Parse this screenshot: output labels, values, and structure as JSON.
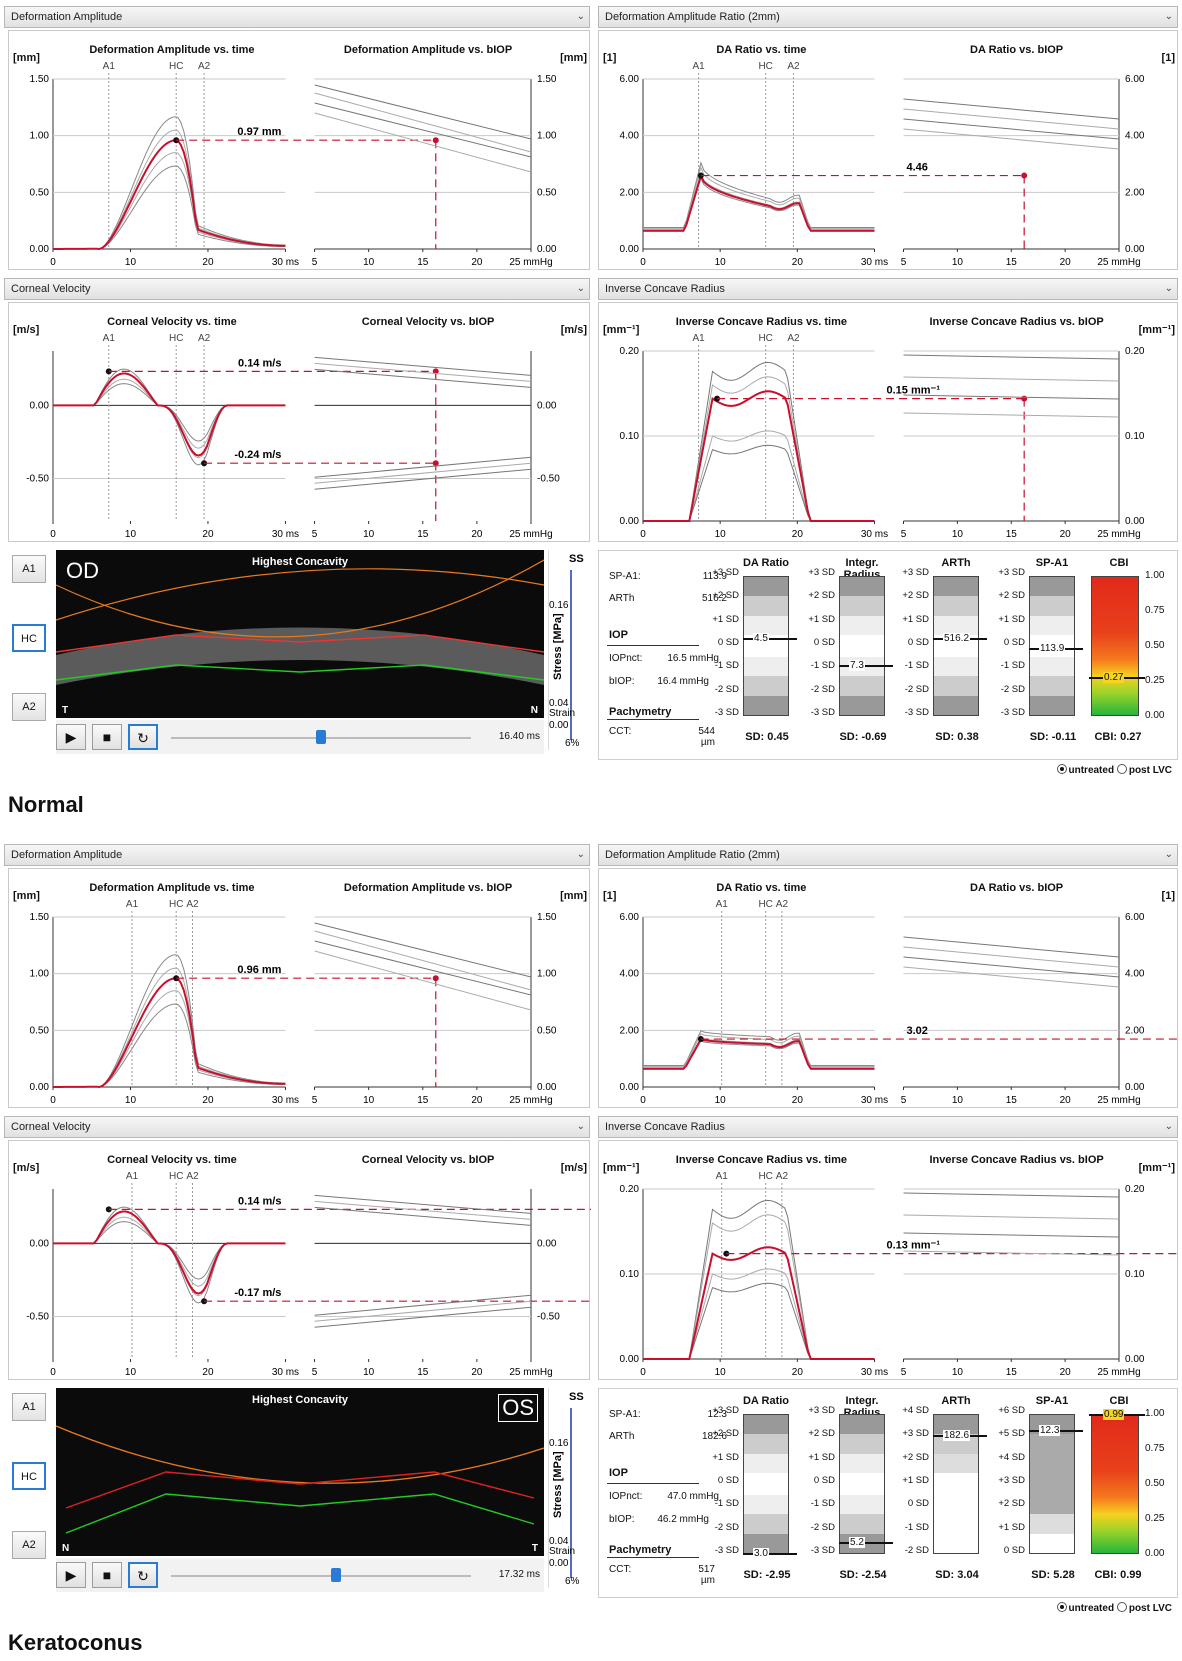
{
  "normal": {
    "caption": "Normal",
    "headers": {
      "da": "Deformation Amplitude",
      "ratio": "Deformation Amplitude Ratio (2mm)",
      "vel": "Corneal Velocity",
      "icr": "Inverse Concave Radius"
    },
    "da": {
      "t1": "Deformation Amplitude vs. time",
      "t2": "Deformation Amplitude vs. bIOP",
      "unit": "[mm]",
      "marks": [
        "A1",
        "HC",
        "A2"
      ],
      "yt": [
        "1.50",
        "1.00",
        "0.50",
        "0.00"
      ],
      "xt": [
        "0",
        "10",
        "20",
        "30 ms"
      ],
      "bx": [
        "5",
        "10",
        "15",
        "20",
        "25 mmHg"
      ],
      "val": "0.97 mm"
    },
    "ratio": {
      "t1": "DA Ratio vs. time",
      "t2": "DA Ratio vs. bIOP",
      "unit": "[1]",
      "marks": [
        "A1",
        "HC",
        "A2"
      ],
      "yt": [
        "6.00",
        "4.00",
        "2.00",
        "0.00"
      ],
      "xt": [
        "0",
        "10",
        "20",
        "30 ms"
      ],
      "bx": [
        "5",
        "10",
        "15",
        "20",
        "25 mmHg"
      ],
      "val": "4.46"
    },
    "vel": {
      "t1": "Corneal Velocity vs. time",
      "t2": "Corneal Velocity vs. bIOP",
      "unit": "[m/s]",
      "marks": [
        "A1",
        "HC",
        "A2"
      ],
      "yt": [
        "0.00",
        "-0.50"
      ],
      "xt": [
        "0",
        "10",
        "20",
        "30 ms"
      ],
      "bx": [
        "5",
        "10",
        "15",
        "20",
        "25 mmHg"
      ],
      "val1": "0.14 m/s",
      "val2": "-0.24 m/s"
    },
    "icr": {
      "t1": "Inverse Concave Radius vs. time",
      "t2": "Inverse Concave Radius vs. bIOP",
      "unit": "[mm⁻¹]",
      "marks": [
        "A1",
        "HC",
        "A2"
      ],
      "yt": [
        "0.20",
        "0.10",
        "0.00"
      ],
      "xt": [
        "0",
        "10",
        "20",
        "30 ms"
      ],
      "bx": [
        "5",
        "10",
        "15",
        "20",
        "25 mmHg"
      ],
      "val": "0.15 mm⁻¹"
    },
    "scan": {
      "btnA1": "A1",
      "btnHC": "HC",
      "btnA2": "A2",
      "eye": "OD",
      "title": "Highest Concavity",
      "left": "T",
      "right": "N",
      "time": "16.40 ms",
      "ss": "SS",
      "stress": "Stress [MPa]",
      "strain": "Strain",
      "sv": [
        "0.16",
        "0.04",
        "0.00"
      ],
      "pct": "6%"
    },
    "m": {
      "spa1l": "SP-A1:",
      "spa1v": "113.9",
      "arthl": "ARTh",
      "arthv": "516.2",
      "iop": "IOP",
      "iopnl": "IOPnct:",
      "iopnv": "16.5 mmHg",
      "biopl": "bIOP:",
      "biopv": "16.4 mmHg",
      "pach": "Pachymetry",
      "cctl": "CCT:",
      "cctv": "544 µm"
    },
    "cols": [
      {
        "h": "DA Ratio",
        "ticks": [
          "+3 SD",
          "+2 SD",
          "+1 SD",
          "0 SD",
          "-1 SD",
          "-2 SD",
          "-3 SD"
        ],
        "mark": "4.5",
        "frac": 0.55,
        "sd": "SD: 0.45"
      },
      {
        "h": "Integr. Radius",
        "ticks": [
          "+3 SD",
          "+2 SD",
          "+1 SD",
          "0 SD",
          "-1 SD",
          "-2 SD",
          "-3 SD"
        ],
        "mark": "7.3",
        "frac": 0.36,
        "sd": "SD: -0.69"
      },
      {
        "h": "ARTh",
        "ticks": [
          "+3 SD",
          "+2 SD",
          "+1 SD",
          "0 SD",
          "-1 SD",
          "-2 SD",
          "-3 SD"
        ],
        "mark": "516.2",
        "frac": 0.55,
        "sd": "SD: 0.38"
      },
      {
        "h": "SP-A1",
        "ticks": [
          "+3 SD",
          "+2 SD",
          "+1 SD",
          "0 SD",
          "-1 SD",
          "-2 SD",
          "-3 SD"
        ],
        "mark": "113.9",
        "frac": 0.48,
        "sd": "SD: -0.11"
      }
    ],
    "cbi": {
      "h": "CBI",
      "ticks": [
        "1.00",
        "0.75",
        "0.50",
        "0.25",
        "0.00"
      ],
      "mark": "0.27",
      "frac": 0.27,
      "sd": "CBI: 0.27"
    },
    "radio": {
      "a": "untreated",
      "b": "post LVC"
    }
  },
  "kc": {
    "caption": "Keratoconus",
    "headers": {
      "da": "Deformation Amplitude",
      "ratio": "Deformation Amplitude Ratio (2mm)",
      "vel": "Corneal Velocity",
      "icr": "Inverse Concave Radius"
    },
    "da": {
      "t1": "Deformation Amplitude vs. time",
      "t2": "Deformation Amplitude vs. bIOP",
      "unit": "[mm]",
      "marks": [
        "A1",
        "HC",
        "A2"
      ],
      "yt": [
        "1.50",
        "1.00",
        "0.50",
        "0.00"
      ],
      "xt": [
        "0",
        "10",
        "20",
        "30 ms"
      ],
      "bx": [
        "5",
        "10",
        "15",
        "20",
        "25 mmHg"
      ],
      "val": "0.96 mm"
    },
    "ratio": {
      "t1": "DA Ratio vs. time",
      "t2": "DA Ratio vs. bIOP",
      "unit": "[1]",
      "marks": [
        "A1",
        "HC",
        "A2"
      ],
      "yt": [
        "6.00",
        "4.00",
        "2.00",
        "0.00"
      ],
      "xt": [
        "0",
        "10",
        "20",
        "30 ms"
      ],
      "bx": [
        "5",
        "10",
        "15",
        "20",
        "25 mmHg"
      ],
      "val": "3.02"
    },
    "vel": {
      "t1": "Corneal Velocity vs. time",
      "t2": "Corneal Velocity vs. bIOP",
      "unit": "[m/s]",
      "marks": [
        "A1",
        "HC",
        "A2"
      ],
      "yt": [
        "0.00",
        "-0.50"
      ],
      "xt": [
        "0",
        "10",
        "20",
        "30 ms"
      ],
      "bx": [
        "5",
        "10",
        "15",
        "20",
        "25 mmHg"
      ],
      "val1": "0.14 m/s",
      "val2": "-0.17 m/s"
    },
    "icr": {
      "t1": "Inverse Concave Radius vs. time",
      "t2": "Inverse Concave Radius vs. bIOP",
      "unit": "[mm⁻¹]",
      "marks": [
        "A1",
        "HC",
        "A2"
      ],
      "yt": [
        "0.20",
        "0.10",
        "0.00"
      ],
      "xt": [
        "0",
        "10",
        "20",
        "30 ms"
      ],
      "bx": [
        "5",
        "10",
        "15",
        "20",
        "25 mmHg"
      ],
      "val": "0.13 mm⁻¹"
    },
    "scan": {
      "btnA1": "A1",
      "btnHC": "HC",
      "btnA2": "A2",
      "eye": "OS",
      "title": "Highest Concavity",
      "left": "N",
      "right": "T",
      "time": "17.32 ms",
      "ss": "SS",
      "stress": "Stress [MPa]",
      "strain": "Strain",
      "sv": [
        "0.16",
        "0.04",
        "0.00"
      ],
      "pct": "6%"
    },
    "m": {
      "spa1l": "SP-A1:",
      "spa1v": "12.3",
      "arthl": "ARTh",
      "arthv": "182.6",
      "iop": "IOP",
      "iopnl": "IOPnct:",
      "iopnv": "47.0 mmHg",
      "biopl": "bIOP:",
      "biopv": "46.2 mmHg",
      "pach": "Pachymetry",
      "cctl": "CCT:",
      "cctv": "517 µm"
    },
    "cols": [
      {
        "h": "DA Ratio",
        "ticks": [
          "+3 SD",
          "+2 SD",
          "+1 SD",
          "0 SD",
          "-1 SD",
          "-2 SD",
          "-3 SD"
        ],
        "mark": "3.0",
        "frac": 0.0,
        "sd": "SD: -2.95"
      },
      {
        "h": "Integr. Radius",
        "ticks": [
          "+3 SD",
          "+2 SD",
          "+1 SD",
          "0 SD",
          "-1 SD",
          "-2 SD",
          "-3 SD"
        ],
        "mark": "5.2",
        "frac": 0.08,
        "sd": "SD: -2.54"
      },
      {
        "h": "ARTh",
        "ticks": [
          "+4 SD",
          "+3 SD",
          "+2 SD",
          "+1 SD",
          "0 SD",
          "-1 SD",
          "-2 SD"
        ],
        "mark": "182.6",
        "frac": 0.84,
        "sd": "SD: 3.04"
      },
      {
        "h": "SP-A1",
        "ticks": [
          "+6 SD",
          "+5 SD",
          "+4 SD",
          "+3 SD",
          "+2 SD",
          "+1 SD",
          "0 SD"
        ],
        "mark": "12.3",
        "frac": 0.88,
        "sd": "SD: 5.28"
      }
    ],
    "cbi": {
      "h": "CBI",
      "ticks": [
        "1.00",
        "0.75",
        "0.50",
        "0.25",
        "0.00"
      ],
      "mark": "0.99",
      "frac": 0.99,
      "sd": "CBI: 0.99"
    },
    "radio": {
      "a": "untreated",
      "b": "post LVC"
    }
  },
  "colors": {
    "red": "#c8102e",
    "grid": "#bdbdbd",
    "gray": "#8a8a8a"
  }
}
